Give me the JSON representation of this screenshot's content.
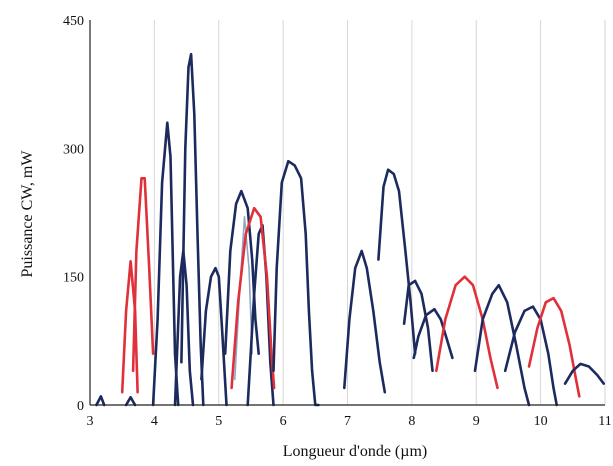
{
  "chart_data": {
    "type": "line",
    "title": "",
    "xlabel": "Longueur d'onde (µm)",
    "ylabel": "Puissance CW, mW",
    "xlim": [
      3,
      11
    ],
    "ylim": [
      0,
      450
    ],
    "xticks": [
      3,
      4,
      5,
      6,
      7,
      8,
      9,
      10,
      11
    ],
    "yticks": [
      0,
      150,
      300,
      450
    ],
    "xtick_labels": [
      "3",
      "4",
      "5",
      "6",
      "7",
      "8",
      "9",
      "10",
      "11"
    ],
    "ytick_labels": [
      "0",
      "150",
      "300",
      "450"
    ],
    "grid": "vertical",
    "legend": "none",
    "colors": {
      "navy": "#1c2a5e",
      "red": "#e0303a",
      "lightblue": "#8fa8c8"
    },
    "series": [
      {
        "color": "navy",
        "points": [
          [
            3.1,
            0
          ],
          [
            3.17,
            10
          ],
          [
            3.22,
            0
          ]
        ]
      },
      {
        "color": "navy",
        "points": [
          [
            3.56,
            0
          ],
          [
            3.63,
            9
          ],
          [
            3.7,
            0
          ]
        ]
      },
      {
        "color": "red",
        "points": [
          [
            3.5,
            15
          ],
          [
            3.56,
            110
          ],
          [
            3.63,
            168
          ],
          [
            3.7,
            110
          ],
          [
            3.74,
            15
          ]
        ]
      },
      {
        "color": "red",
        "points": [
          [
            3.67,
            40
          ],
          [
            3.72,
            180
          ],
          [
            3.8,
            265
          ],
          [
            3.85,
            265
          ],
          [
            3.92,
            160
          ],
          [
            3.98,
            60
          ]
        ]
      },
      {
        "color": "navy",
        "points": [
          [
            3.98,
            0
          ],
          [
            4.05,
            100
          ],
          [
            4.12,
            260
          ],
          [
            4.2,
            330
          ],
          [
            4.25,
            290
          ],
          [
            4.32,
            60
          ],
          [
            4.37,
            0
          ]
        ]
      },
      {
        "color": "navy",
        "points": [
          [
            4.32,
            0
          ],
          [
            4.4,
            150
          ],
          [
            4.45,
            180
          ],
          [
            4.5,
            140
          ],
          [
            4.55,
            40
          ],
          [
            4.6,
            0
          ]
        ]
      },
      {
        "color": "navy",
        "points": [
          [
            4.42,
            50
          ],
          [
            4.48,
            300
          ],
          [
            4.53,
            395
          ],
          [
            4.57,
            410
          ],
          [
            4.62,
            340
          ],
          [
            4.67,
            200
          ],
          [
            4.72,
            70
          ],
          [
            4.76,
            0
          ]
        ]
      },
      {
        "color": "navy",
        "points": [
          [
            4.73,
            30
          ],
          [
            4.8,
            110
          ],
          [
            4.88,
            150
          ],
          [
            4.95,
            160
          ],
          [
            5.0,
            150
          ],
          [
            5.05,
            90
          ],
          [
            5.12,
            0
          ]
        ]
      },
      {
        "color": "navy",
        "points": [
          [
            5.1,
            60
          ],
          [
            5.18,
            180
          ],
          [
            5.27,
            235
          ],
          [
            5.35,
            250
          ],
          [
            5.45,
            230
          ],
          [
            5.52,
            170
          ],
          [
            5.57,
            100
          ],
          [
            5.62,
            60
          ]
        ]
      },
      {
        "color": "lightblue",
        "points": [
          [
            5.25,
            30
          ],
          [
            5.33,
            140
          ],
          [
            5.4,
            220
          ],
          [
            5.47,
            160
          ],
          [
            5.52,
            60
          ]
        ]
      },
      {
        "color": "navy",
        "points": [
          [
            5.45,
            0
          ],
          [
            5.55,
            130
          ],
          [
            5.62,
            200
          ],
          [
            5.68,
            210
          ],
          [
            5.74,
            150
          ],
          [
            5.8,
            50
          ],
          [
            5.85,
            0
          ]
        ]
      },
      {
        "color": "red",
        "points": [
          [
            5.2,
            20
          ],
          [
            5.3,
            120
          ],
          [
            5.42,
            200
          ],
          [
            5.55,
            230
          ],
          [
            5.65,
            220
          ],
          [
            5.75,
            150
          ],
          [
            5.82,
            60
          ],
          [
            5.86,
            20
          ]
        ]
      },
      {
        "color": "navy",
        "points": [
          [
            5.85,
            40
          ],
          [
            5.9,
            160
          ],
          [
            5.98,
            260
          ],
          [
            6.08,
            285
          ],
          [
            6.18,
            280
          ],
          [
            6.28,
            265
          ],
          [
            6.35,
            200
          ],
          [
            6.4,
            110
          ],
          [
            6.45,
            40
          ],
          [
            6.5,
            0
          ],
          [
            6.55,
            0
          ]
        ]
      },
      {
        "color": "navy",
        "points": [
          [
            6.95,
            20
          ],
          [
            7.03,
            100
          ],
          [
            7.12,
            160
          ],
          [
            7.22,
            180
          ],
          [
            7.3,
            160
          ],
          [
            7.4,
            110
          ],
          [
            7.5,
            50
          ],
          [
            7.58,
            15
          ]
        ]
      },
      {
        "color": "navy",
        "points": [
          [
            7.48,
            170
          ],
          [
            7.56,
            255
          ],
          [
            7.63,
            275
          ],
          [
            7.72,
            270
          ],
          [
            7.8,
            250
          ],
          [
            7.9,
            180
          ],
          [
            7.98,
            120
          ],
          [
            8.05,
            60
          ]
        ]
      },
      {
        "color": "navy",
        "points": [
          [
            7.88,
            95
          ],
          [
            7.95,
            140
          ],
          [
            8.05,
            145
          ],
          [
            8.15,
            130
          ],
          [
            8.25,
            90
          ],
          [
            8.32,
            40
          ]
        ]
      },
      {
        "color": "navy",
        "points": [
          [
            8.03,
            55
          ],
          [
            8.1,
            80
          ],
          [
            8.22,
            105
          ],
          [
            8.35,
            112
          ],
          [
            8.45,
            100
          ],
          [
            8.55,
            75
          ],
          [
            8.63,
            55
          ]
        ]
      },
      {
        "color": "red",
        "points": [
          [
            8.38,
            40
          ],
          [
            8.52,
            100
          ],
          [
            8.68,
            140
          ],
          [
            8.82,
            150
          ],
          [
            8.95,
            140
          ],
          [
            9.1,
            100
          ],
          [
            9.22,
            55
          ],
          [
            9.33,
            20
          ]
        ]
      },
      {
        "color": "navy",
        "points": [
          [
            8.98,
            40
          ],
          [
            9.1,
            100
          ],
          [
            9.25,
            130
          ],
          [
            9.35,
            140
          ],
          [
            9.48,
            120
          ],
          [
            9.62,
            70
          ],
          [
            9.75,
            20
          ],
          [
            9.82,
            0
          ]
        ]
      },
      {
        "color": "navy",
        "points": [
          [
            9.45,
            40
          ],
          [
            9.6,
            85
          ],
          [
            9.75,
            110
          ],
          [
            9.88,
            115
          ],
          [
            10.0,
            100
          ],
          [
            10.12,
            60
          ],
          [
            10.2,
            20
          ],
          [
            10.25,
            0
          ]
        ]
      },
      {
        "color": "red",
        "points": [
          [
            9.82,
            45
          ],
          [
            9.95,
            90
          ],
          [
            10.08,
            120
          ],
          [
            10.2,
            125
          ],
          [
            10.32,
            110
          ],
          [
            10.45,
            70
          ],
          [
            10.55,
            30
          ],
          [
            10.6,
            10
          ]
        ]
      },
      {
        "color": "navy",
        "points": [
          [
            10.38,
            25
          ],
          [
            10.5,
            40
          ],
          [
            10.62,
            48
          ],
          [
            10.75,
            45
          ],
          [
            10.88,
            35
          ],
          [
            10.98,
            25
          ]
        ]
      }
    ]
  }
}
